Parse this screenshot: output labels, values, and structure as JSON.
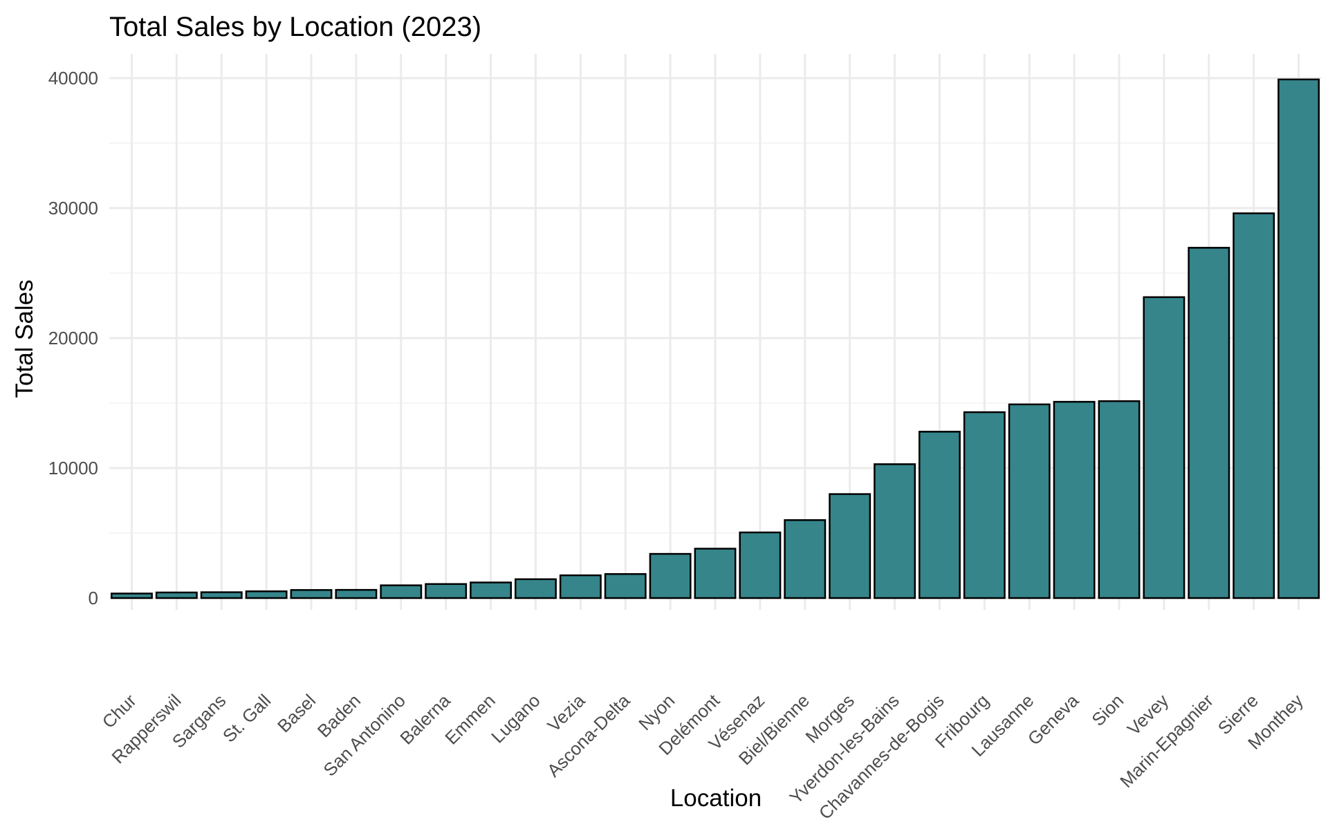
{
  "chart_data": {
    "type": "bar",
    "title": "Total Sales by Location (2023)",
    "xlabel": "Location",
    "ylabel": "Total Sales",
    "categories": [
      "Chur",
      "Rapperswil",
      "Sargans",
      "St. Gall",
      "Basel",
      "Baden",
      "San Antonino",
      "Balerna",
      "Emmen",
      "Lugano",
      "Vezia",
      "Ascona-Delta",
      "Nyon",
      "Delémont",
      "Vésenaz",
      "Biel/Bienne",
      "Morges",
      "Yverdon-les-Bains",
      "Chavannes-de-Bogis",
      "Fribourg",
      "Lausanne",
      "Geneva",
      "Sion",
      "Vevey",
      "Marin-Epagnier",
      "Sierre",
      "Monthey"
    ],
    "values": [
      350,
      430,
      450,
      520,
      620,
      630,
      980,
      1080,
      1200,
      1450,
      1750,
      1850,
      3400,
      3800,
      5050,
      6000,
      8000,
      10300,
      12800,
      14300,
      14900,
      15100,
      15150,
      23150,
      26950,
      29600,
      39900
    ],
    "ylim": [
      0,
      42000
    ],
    "yticks": [
      0,
      10000,
      20000,
      30000,
      40000
    ],
    "ytick_labels": [
      "0",
      "10000",
      "20000",
      "30000",
      "40000"
    ],
    "bar_color": "#35858b",
    "bar_stroke": "#000000",
    "grid": true
  }
}
